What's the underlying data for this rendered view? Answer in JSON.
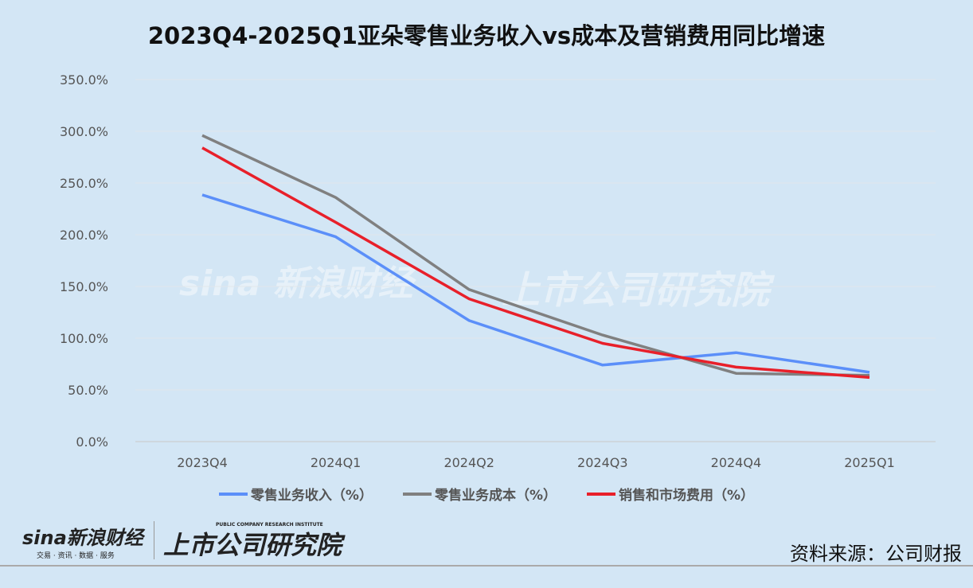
{
  "chart_data": {
    "type": "line",
    "title": "2023Q4-2025Q1亚朵零售业务收入vs成本及营销费用同比增速",
    "categories": [
      "2023Q4",
      "2024Q1",
      "2024Q2",
      "2024Q3",
      "2024Q4",
      "2025Q1"
    ],
    "ylim": [
      0,
      350
    ],
    "yticks": [
      "0.0%",
      "50.0%",
      "100.0%",
      "150.0%",
      "200.0%",
      "250.0%",
      "300.0%",
      "350.0%"
    ],
    "grid": true,
    "legend_position": "bottom",
    "series": [
      {
        "name": "零售业务收入（%）",
        "color": "#5b8ff9",
        "values": [
          238.5,
          198,
          117,
          74,
          86,
          67
        ]
      },
      {
        "name": "零售业务成本（%）",
        "color": "#808080",
        "values": [
          296,
          236,
          147,
          103,
          66,
          64
        ]
      },
      {
        "name": "销售和市场费用（%）",
        "color": "#e8202a",
        "values": [
          284,
          212,
          138,
          95,
          72,
          62
        ]
      }
    ]
  },
  "branding": {
    "sina_logo": "sina新浪财经",
    "sina_tagline": "交易 · 资讯 · 数据 · 服务",
    "institute_logo": "上市公司研究院",
    "institute_en": "PUBLIC COMPANY RESEARCH INSTITUTE"
  },
  "source": "资料来源：公司财报"
}
